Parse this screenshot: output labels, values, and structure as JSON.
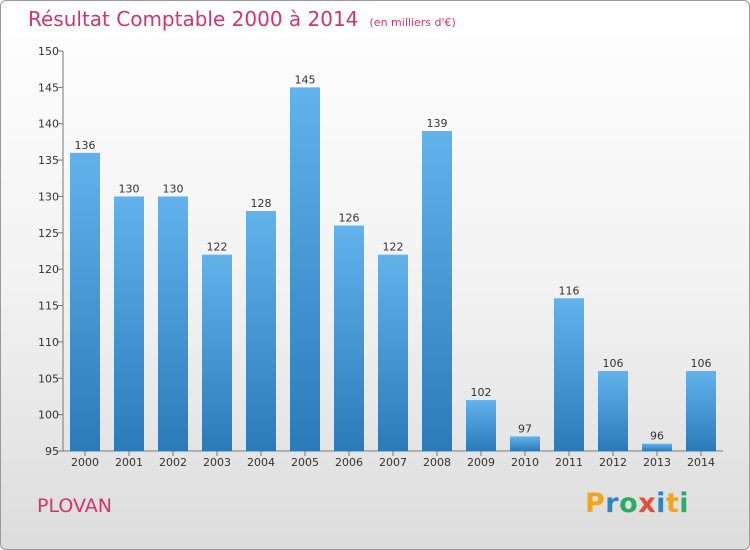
{
  "title": "Résultat Comptable 2000 à 2014",
  "unit_note": "(en milliers d'€)",
  "commune": "PLOVAN",
  "logo": {
    "text": "Proxiti",
    "letters": [
      "P",
      "r",
      "o",
      "x",
      "i",
      "t",
      "i"
    ],
    "colors": [
      "#f2a51a",
      "#2e86c1",
      "#27ae60",
      "#e74c3c",
      "#2e86c1",
      "#f2a51a",
      "#27ae60"
    ]
  },
  "colors": {
    "title": "#d6336c",
    "bar_light": "#62b2ec",
    "bar_dark": "#2a7bb8"
  },
  "chart_data": {
    "type": "bar",
    "title": "Résultat Comptable 2000 à 2014",
    "ylabel": "en milliers d'€",
    "xlabel": "",
    "categories": [
      "2000",
      "2001",
      "2002",
      "2003",
      "2004",
      "2005",
      "2006",
      "2007",
      "2008",
      "2009",
      "2010",
      "2011",
      "2012",
      "2013",
      "2014"
    ],
    "values": [
      136,
      130,
      130,
      122,
      128,
      145,
      126,
      122,
      139,
      102,
      97,
      116,
      106,
      96,
      106
    ],
    "ylim": [
      95,
      150
    ],
    "yticks": [
      95,
      100,
      105,
      110,
      115,
      120,
      125,
      130,
      135,
      140,
      145,
      150
    ],
    "grid": false
  }
}
